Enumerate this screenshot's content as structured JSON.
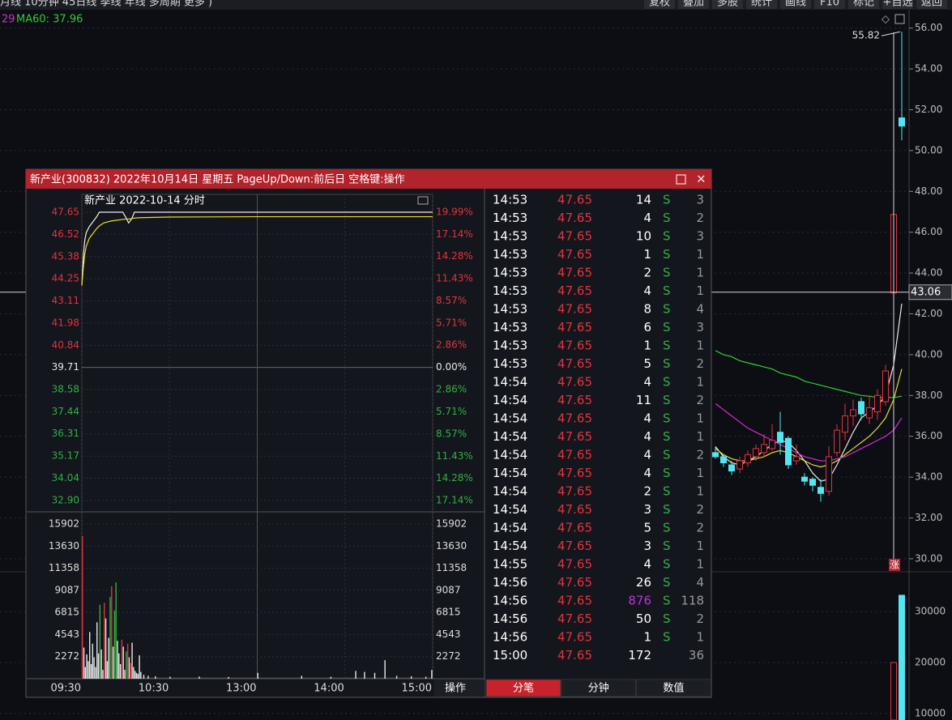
{
  "toolbar": {
    "left": "月线  10分钟  45日线  季线  年线  多周期  更多 )",
    "buttons": [
      "复权",
      "叠加",
      "多股",
      "统计",
      "画线",
      "F10",
      "标记",
      "+自选",
      "返回"
    ]
  },
  "chart_data": [
    {
      "type": "candlestick",
      "legend_prefix": "29",
      "legend": "MA60: 37.96",
      "categories": [
        null,
        null,
        null,
        null,
        null,
        null,
        null,
        null,
        null,
        null,
        null,
        null,
        null,
        null,
        null,
        null,
        null,
        null,
        null,
        null,
        null,
        null,
        null,
        null
      ],
      "open": [
        35.2,
        35.0,
        34.6,
        34.4,
        34.7,
        35.0,
        35.2,
        35.4,
        36.2,
        35.9,
        34.8,
        34.0,
        33.9,
        33.5,
        33.3,
        35.2,
        36.2,
        37.0,
        37.7,
        36.9,
        37.2,
        37.7,
        43.02,
        51.6
      ],
      "high": [
        35.5,
        35.1,
        34.8,
        35.0,
        35.3,
        35.6,
        36.1,
        36.6,
        37.2,
        36.0,
        35.6,
        34.2,
        34.0,
        33.9,
        35.5,
        36.6,
        37.6,
        37.8,
        37.9,
        38.0,
        38.3,
        39.5,
        46.87,
        55.82
      ],
      "low": [
        34.9,
        34.5,
        34.1,
        34.2,
        34.5,
        34.8,
        35.0,
        35.3,
        35.1,
        34.4,
        34.6,
        33.6,
        33.3,
        32.8,
        33.1,
        35.0,
        35.8,
        36.5,
        36.8,
        36.6,
        36.8,
        37.5,
        39.7,
        50.5
      ],
      "close": [
        35.0,
        34.7,
        34.3,
        34.8,
        35.1,
        35.4,
        35.6,
        35.8,
        35.7,
        34.6,
        35.0,
        33.8,
        33.6,
        33.2,
        35.0,
        36.3,
        37.0,
        37.3,
        37.1,
        37.4,
        38.0,
        39.2,
        46.87,
        51.2
      ],
      "up_color": "#e0343c",
      "down_color": "#54e6f0",
      "lines": [
        {
          "color": "#e8e8e8",
          "values": [
            35.5,
            35.0,
            34.7,
            34.6,
            34.8,
            35.0,
            35.3,
            35.6,
            35.8,
            35.7,
            35.3,
            34.8,
            34.2,
            33.8,
            33.9,
            34.6,
            35.4,
            36.2,
            36.9,
            37.2,
            37.5,
            38.0,
            39.5,
            42.5
          ]
        },
        {
          "color": "#e6dc2c",
          "values": [
            35.4,
            35.1,
            34.9,
            34.8,
            34.8,
            34.9,
            35.0,
            35.2,
            35.3,
            35.2,
            35.0,
            34.8,
            34.6,
            34.5,
            34.6,
            34.8,
            35.1,
            35.4,
            35.7,
            36.0,
            36.4,
            36.9,
            37.8,
            39.3
          ]
        },
        {
          "color": "#d62ad6",
          "values": [
            37.6,
            37.3,
            37.0,
            36.7,
            36.4,
            36.2,
            36.0,
            35.8,
            35.6,
            35.4,
            35.2,
            35.0,
            34.9,
            34.8,
            34.8,
            34.9,
            35.0,
            35.2,
            35.4,
            35.6,
            35.8,
            36.0,
            36.3,
            36.9
          ]
        },
        {
          "color": "#2fd02f",
          "values": [
            40.2,
            40.0,
            39.9,
            39.7,
            39.6,
            39.5,
            39.4,
            39.3,
            39.1,
            39.0,
            38.9,
            38.7,
            38.6,
            38.5,
            38.4,
            38.3,
            38.2,
            38.1,
            38.0,
            37.96,
            37.9,
            37.9,
            37.9,
            37.96
          ]
        }
      ],
      "ylim": [
        29.6,
        56.9
      ],
      "yticks": [
        {
          "value": 56,
          "label": "56.00"
        },
        {
          "value": 54,
          "label": "54.00"
        },
        {
          "value": 52,
          "label": "52.00"
        },
        {
          "value": 50,
          "label": "50.00"
        },
        {
          "value": 48,
          "label": "48.00"
        },
        {
          "value": 46,
          "label": "46.00"
        },
        {
          "value": 44,
          "label": "44.00"
        },
        {
          "value": 42,
          "label": "42.00"
        },
        {
          "value": 40,
          "label": "40.00"
        },
        {
          "value": 38,
          "label": "38.00"
        },
        {
          "value": 36,
          "label": "36.00"
        },
        {
          "value": 34,
          "label": "34.00"
        },
        {
          "value": 32,
          "label": "32.00"
        },
        {
          "value": 30,
          "label": "30.00"
        }
      ],
      "crosshair": {
        "value": 43.06,
        "label": "43.06"
      },
      "high_label": {
        "value": 55.82,
        "label": "55.82"
      },
      "marker": "涨",
      "grid": true
    },
    {
      "type": "bar",
      "categories": [
        null,
        null
      ],
      "values": [
        20000,
        33200
      ],
      "colors": [
        "#e0343c",
        "#54e6f0"
      ],
      "ylim": [
        0,
        37800
      ],
      "yticks": [
        30000,
        20000,
        10000
      ]
    },
    {
      "type": "line",
      "title": "新产业  2022-10-14 分时",
      "x": [
        0,
        1,
        2,
        3,
        5,
        8,
        10,
        12,
        15,
        20,
        28,
        30,
        32,
        34,
        36,
        38,
        40,
        60,
        120,
        180,
        240
      ],
      "series": [
        {
          "color": "#f0f0f0",
          "values": [
            43.9,
            45.4,
            46.2,
            46.6,
            46.9,
            47.2,
            47.4,
            47.65,
            47.65,
            47.65,
            47.65,
            47.4,
            47.1,
            47.3,
            47.65,
            47.65,
            47.65,
            47.65,
            47.65,
            47.65,
            47.65
          ]
        },
        {
          "color": "#e6dc2c",
          "values": [
            43.9,
            44.8,
            45.5,
            45.9,
            46.3,
            46.6,
            46.8,
            46.95,
            47.1,
            47.2,
            47.28,
            47.3,
            47.3,
            47.32,
            47.35,
            47.36,
            47.37,
            47.4,
            47.42,
            47.42,
            47.42
          ]
        }
      ],
      "xlim": [
        0,
        240
      ],
      "xticks": [
        {
          "value": 0,
          "label": "09:30"
        },
        {
          "value": 60,
          "label": "10:30"
        },
        {
          "value": 120,
          "label": "13:00"
        },
        {
          "value": 180,
          "label": "14:00"
        },
        {
          "value": 240,
          "label": "15:00"
        }
      ],
      "ylim": [
        32.9,
        47.65
      ],
      "yticks": [
        47.65,
        46.52,
        45.38,
        44.25,
        43.11,
        41.98,
        40.84,
        39.71,
        38.58,
        37.44,
        36.31,
        35.17,
        34.04,
        {
          "value": 32.9,
          "label": "32.90"
        }
      ],
      "y2lim": [
        -17.14,
        19.99
      ],
      "y2ticks": [
        {
          "value": 19.99,
          "label": "19.99%"
        },
        {
          "value": 17.14,
          "label": "17.14%"
        },
        {
          "value": 14.28,
          "label": "14.28%"
        },
        {
          "value": 11.43,
          "label": "11.43%"
        },
        {
          "value": 8.57,
          "label": "8.57%"
        },
        {
          "value": 5.71,
          "label": "5.71%"
        },
        {
          "value": 2.86,
          "label": "2.86%"
        },
        {
          "value": 0,
          "label": "0.00%"
        },
        {
          "value": -2.86,
          "label": "2.86%"
        },
        {
          "value": -5.71,
          "label": "5.71%"
        },
        {
          "value": -8.57,
          "label": "8.57%"
        },
        {
          "value": -11.43,
          "label": "11.43%"
        },
        {
          "value": -14.28,
          "label": "14.28%"
        },
        {
          "value": -17.14,
          "label": "17.14%"
        }
      ],
      "up_color": "#e0343c",
      "down_color": "#2fb043",
      "flat_color": "#e8e8e8"
    },
    {
      "type": "bar",
      "x": [
        0,
        1,
        2,
        3,
        4,
        5,
        6,
        7,
        8,
        9,
        10,
        11,
        12,
        13,
        14,
        15,
        16,
        17,
        18,
        19,
        20,
        21,
        22,
        23,
        24,
        25,
        26,
        27,
        28,
        29,
        30,
        31,
        32,
        33,
        34,
        35,
        36,
        37,
        38,
        39,
        40,
        42,
        45,
        50,
        60,
        80,
        100,
        120,
        150,
        170,
        187,
        193,
        200,
        207,
        215,
        225,
        235,
        239
      ],
      "values": [
        14650,
        3200,
        1200,
        2500,
        1800,
        4800,
        1500,
        3600,
        2200,
        1200,
        5800,
        2600,
        7600,
        3000,
        900,
        7800,
        6200,
        1800,
        4200,
        8400,
        9500,
        3300,
        7000,
        9900,
        3900,
        2600,
        1500,
        4000,
        3300,
        900,
        2800,
        3600,
        2200,
        1600,
        3700,
        1200,
        800,
        600,
        500,
        2400,
        700,
        400,
        300,
        250,
        200,
        220,
        180,
        600,
        300,
        200,
        800,
        700,
        600,
        1900,
        300,
        250,
        200,
        900
      ],
      "colors": [
        "#e0343c",
        "#e8e8e8",
        "#e8e8e8",
        "#e8e8e8",
        "#e8e8e8",
        "#e8e8e8",
        "#e8e8e8",
        "#e8e8e8",
        "#e8e8e8",
        "#e8e8e8",
        "#e8e8e8",
        "#e8e8e8",
        "#2fb043",
        "#e8e8e8",
        "#e8e8e8",
        "#e0343c",
        "#e8e8e8",
        "#e8e8e8",
        "#e8e8e8",
        "#2fb043",
        "#e0343c",
        "#e8e8e8",
        "#2fb043",
        "#2fb043",
        "#e8e8e8",
        "#e8e8e8",
        "#e8e8e8",
        "#e0343c",
        "#e8e8e8",
        "#e8e8e8",
        "#2fb043",
        "#e0343c",
        "#e8e8e8",
        "#e0343c",
        "#e8e8e8",
        "#e8e8e8",
        "#e8e8e8",
        "#e8e8e8",
        "#e8e8e8",
        "#e8e8e8",
        "#e8e8e8",
        "#e8e8e8",
        "#e8e8e8",
        "#e8e8e8",
        "#e8e8e8",
        "#e8e8e8",
        "#e8e8e8",
        "#e8e8e8",
        "#e8e8e8",
        "#e8e8e8",
        "#e8e8e8",
        "#e8e8e8",
        "#e8e8e8",
        "#e8e8e8",
        "#e8e8e8",
        "#e8e8e8",
        "#e8e8e8",
        "#e8e8e8"
      ],
      "xlim": [
        0,
        240
      ],
      "ylim": [
        0,
        15902
      ],
      "yticks": [
        15902,
        13630,
        11358,
        9087,
        6815,
        4543,
        2272
      ]
    }
  ],
  "popup": {
    "title": "新产业(300832) 2022年10月14日 星期五 PageUp/Down:前后日 空格键:操作",
    "action": "操作",
    "trades": [
      [
        "14:53",
        "47.65",
        "14",
        "S",
        "3"
      ],
      [
        "14:53",
        "47.65",
        "4",
        "S",
        "2"
      ],
      [
        "14:53",
        "47.65",
        "10",
        "S",
        "3"
      ],
      [
        "14:53",
        "47.65",
        "1",
        "S",
        "1"
      ],
      [
        "14:53",
        "47.65",
        "2",
        "S",
        "1"
      ],
      [
        "14:53",
        "47.65",
        "4",
        "S",
        "1"
      ],
      [
        "14:53",
        "47.65",
        "8",
        "S",
        "4"
      ],
      [
        "14:53",
        "47.65",
        "6",
        "S",
        "3"
      ],
      [
        "14:53",
        "47.65",
        "1",
        "S",
        "1"
      ],
      [
        "14:53",
        "47.65",
        "5",
        "S",
        "2"
      ],
      [
        "14:54",
        "47.65",
        "4",
        "S",
        "1"
      ],
      [
        "14:54",
        "47.65",
        "11",
        "S",
        "2"
      ],
      [
        "14:54",
        "47.65",
        "4",
        "S",
        "1"
      ],
      [
        "14:54",
        "47.65",
        "4",
        "S",
        "1"
      ],
      [
        "14:54",
        "47.65",
        "4",
        "S",
        "2"
      ],
      [
        "14:54",
        "47.65",
        "4",
        "S",
        "1"
      ],
      [
        "14:54",
        "47.65",
        "2",
        "S",
        "1"
      ],
      [
        "14:54",
        "47.65",
        "3",
        "S",
        "2"
      ],
      [
        "14:54",
        "47.65",
        "5",
        "S",
        "2"
      ],
      [
        "14:54",
        "47.65",
        "3",
        "S",
        "1"
      ],
      [
        "14:55",
        "47.65",
        "4",
        "S",
        "1"
      ],
      [
        "14:56",
        "47.65",
        "26",
        "S",
        "4"
      ],
      [
        "14:56",
        "47.65",
        "876",
        "S",
        "118"
      ],
      [
        "14:56",
        "47.65",
        "50",
        "S",
        "2"
      ],
      [
        "14:56",
        "47.65",
        "1",
        "S",
        "1"
      ],
      [
        "15:00",
        "47.65",
        "172",
        null,
        "36"
      ]
    ],
    "big_trade_color": "#c030d8",
    "tabs": [
      "分笔",
      "分钟",
      "数值"
    ]
  }
}
